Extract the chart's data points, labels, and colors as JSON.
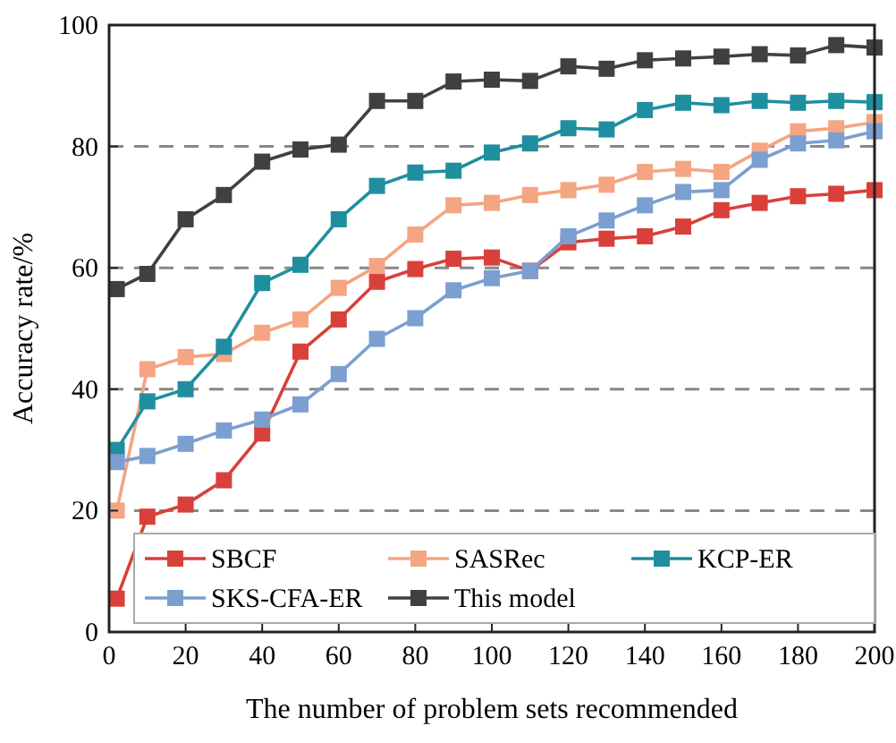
{
  "chart_data": {
    "type": "line",
    "xlabel": "The number of problem sets recommended",
    "ylabel": "Accuracy rate/%",
    "x": [
      2,
      10,
      20,
      30,
      40,
      50,
      60,
      70,
      80,
      90,
      100,
      110,
      120,
      130,
      140,
      150,
      160,
      170,
      180,
      190,
      200
    ],
    "xlim": [
      0,
      200
    ],
    "xticks": [
      0,
      20,
      40,
      60,
      80,
      100,
      120,
      140,
      160,
      180,
      200
    ],
    "ylim": [
      0,
      100
    ],
    "yticks": [
      0,
      20,
      40,
      60,
      80,
      100
    ],
    "grid": "y",
    "legend": "bottom",
    "marker": "square",
    "line_style": "solid",
    "series": [
      {
        "name": "SBCF",
        "color": "#d9403a",
        "values": [
          5.5,
          19,
          21,
          25,
          32.7,
          46.2,
          51.5,
          57.7,
          59.8,
          61.5,
          61.7,
          59.5,
          64.2,
          64.8,
          65.2,
          66.8,
          69.5,
          70.7,
          71.8,
          72.2,
          72.8
        ]
      },
      {
        "name": "SASRec",
        "color": "#f4a582",
        "values": [
          20,
          43.3,
          45.3,
          45.8,
          49.3,
          51.5,
          56.7,
          60.3,
          65.5,
          70.3,
          70.7,
          72,
          72.8,
          73.7,
          75.8,
          76.3,
          75.8,
          79.3,
          82.5,
          83,
          84
        ]
      },
      {
        "name": "KCP-ER",
        "color": "#1f8fa0",
        "values": [
          30,
          38,
          40,
          47,
          57.5,
          60.5,
          68,
          73.5,
          75.7,
          76,
          79,
          80.5,
          83,
          82.8,
          86,
          87.2,
          86.8,
          87.5,
          87.2,
          87.5,
          87.3
        ]
      },
      {
        "name": "SKS-CFA-ER",
        "color": "#7b9fd0",
        "values": [
          28,
          29,
          31,
          33.2,
          35,
          37.5,
          42.5,
          48.3,
          51.7,
          56.3,
          58.3,
          59.5,
          65.2,
          67.8,
          70.3,
          72.5,
          72.8,
          77.8,
          80.5,
          81,
          82.5
        ]
      },
      {
        "name": "This model",
        "color": "#404040",
        "values": [
          56.5,
          59,
          68,
          72,
          77.5,
          79.5,
          80.3,
          87.5,
          87.5,
          90.7,
          91,
          90.8,
          93.2,
          92.8,
          94.2,
          94.5,
          94.8,
          95.2,
          95,
          96.7,
          96.3
        ]
      }
    ]
  }
}
